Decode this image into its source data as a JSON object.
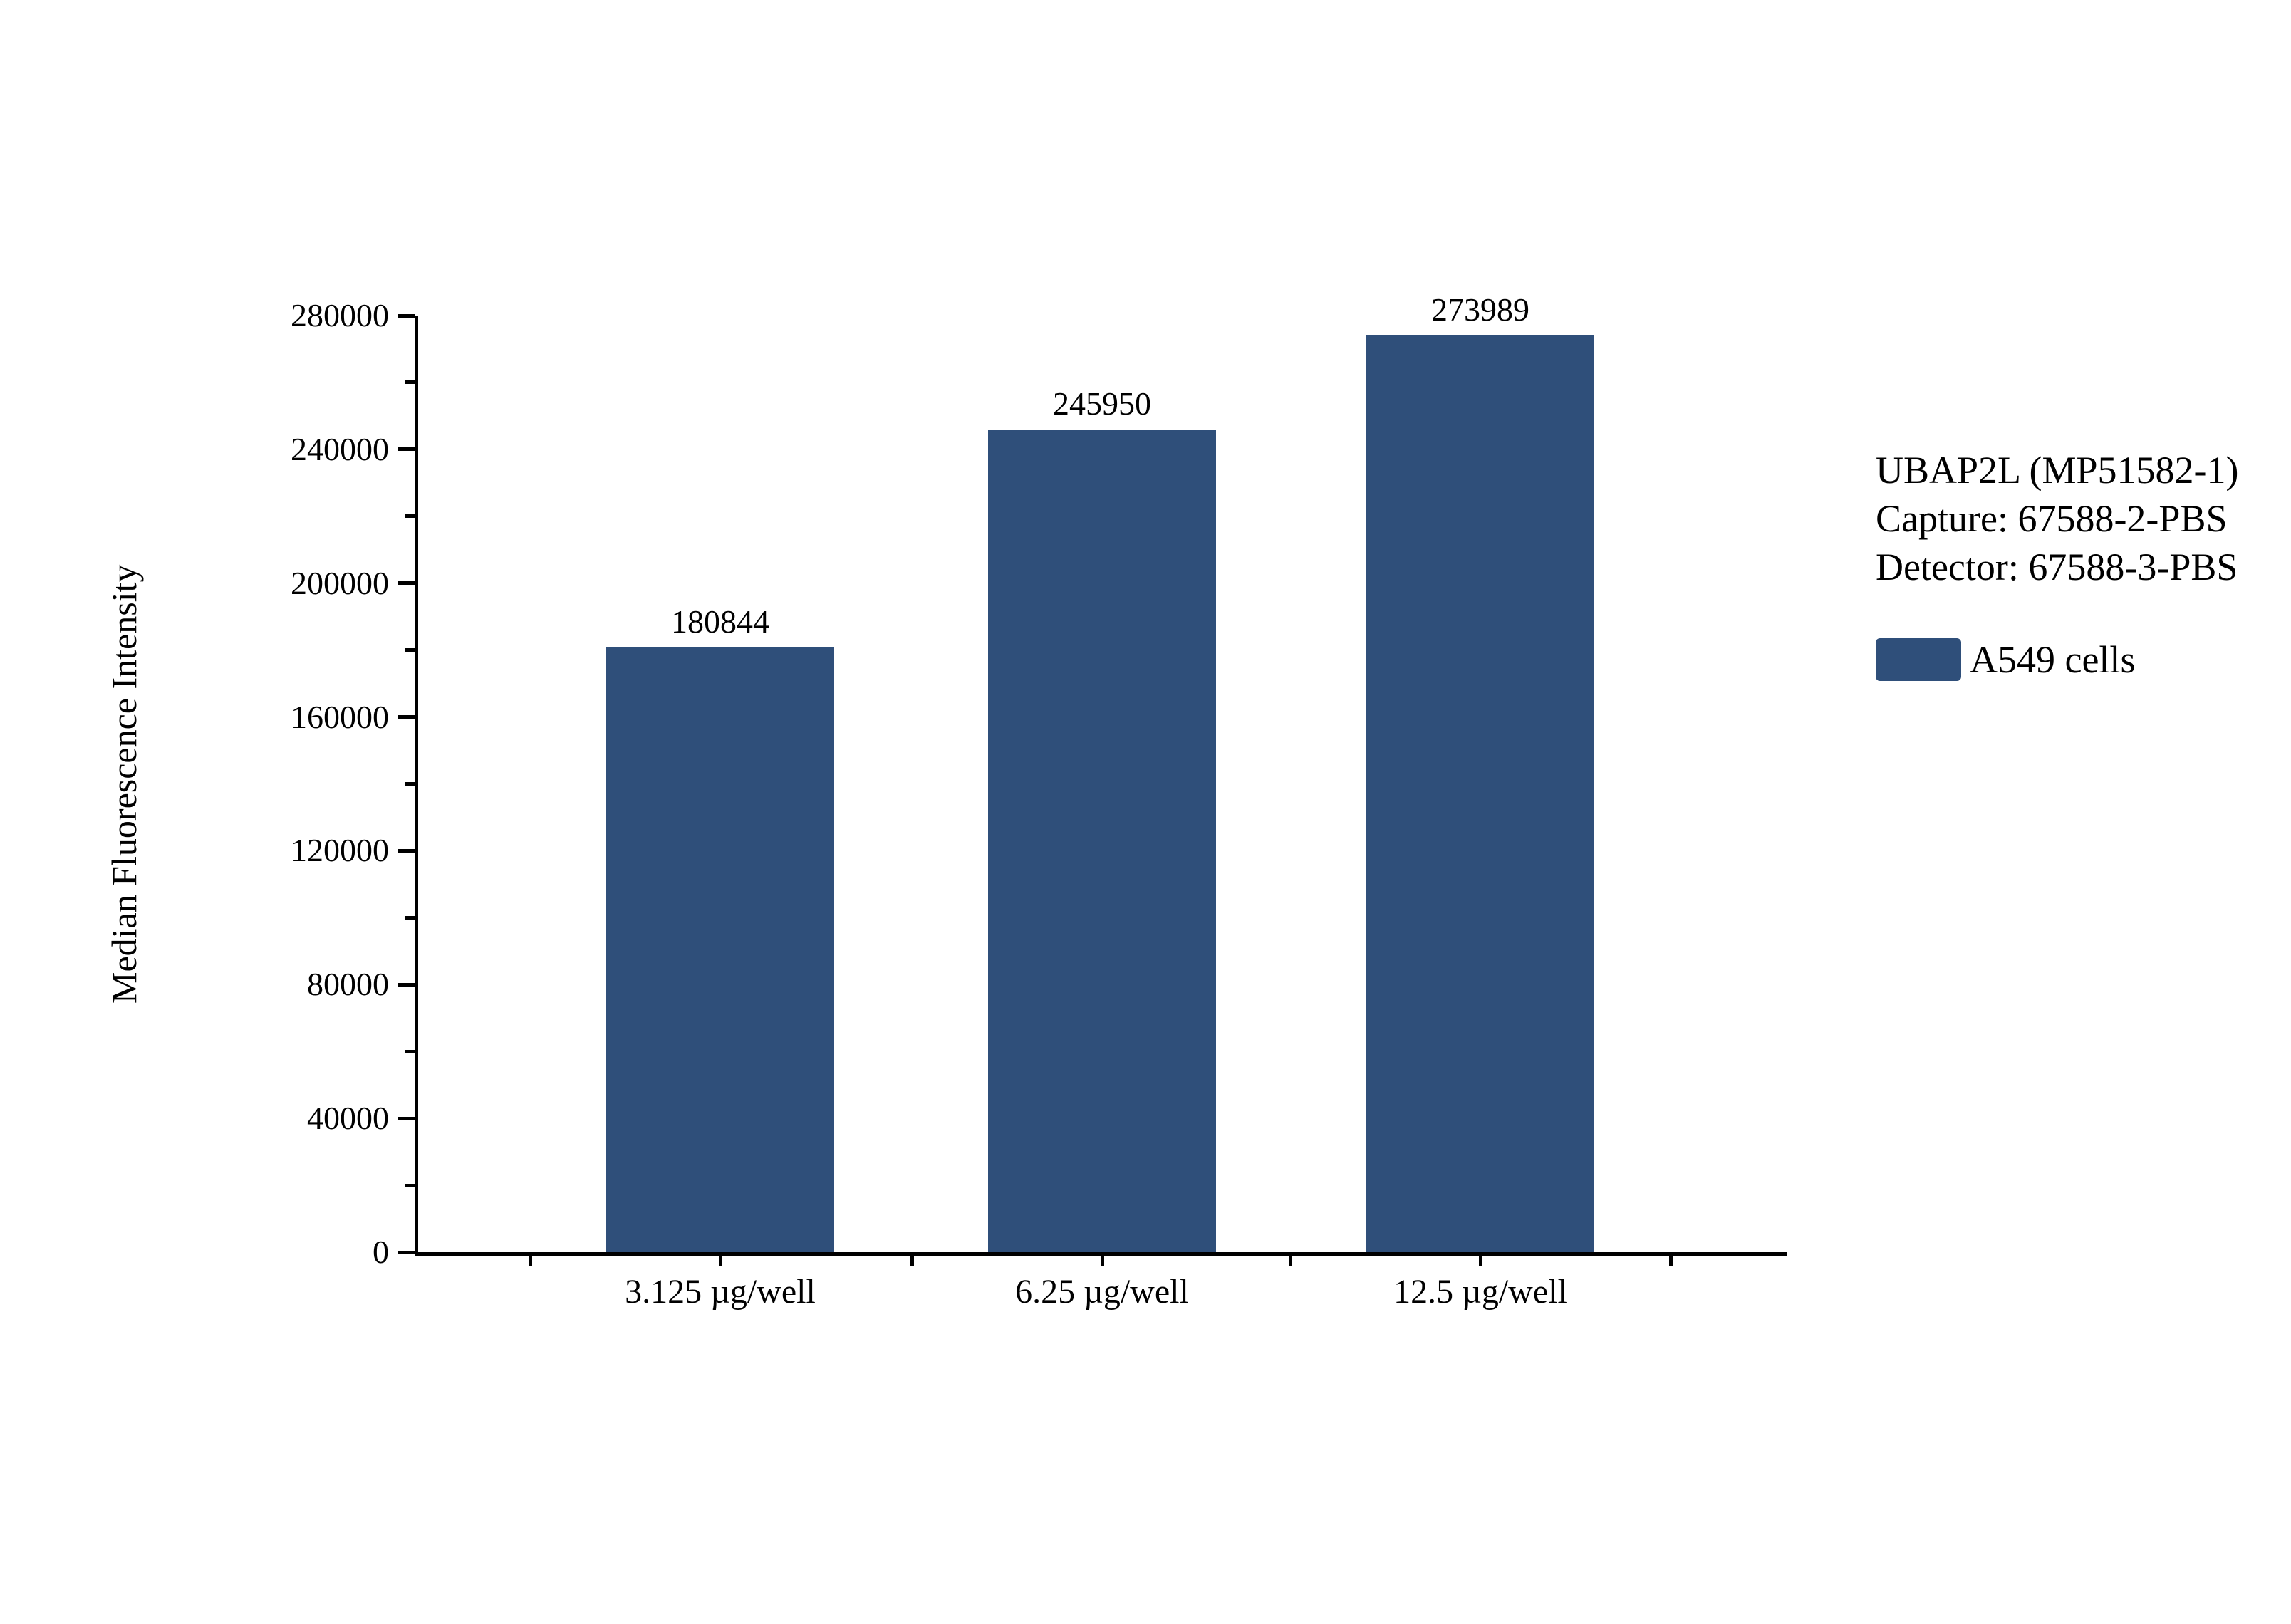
{
  "chart_data": {
    "type": "bar",
    "title": "",
    "categories": [
      "3.125 µg/well",
      "6.25 µg/well",
      "12.5 µg/well"
    ],
    "values": [
      180844,
      245950,
      273989
    ],
    "value_labels": [
      "180844",
      "245950",
      "273989"
    ],
    "xlabel": "",
    "ylabel": "Median Fluorescence Intensity",
    "ylim": [
      0,
      280000
    ],
    "ytick_interval": 40000,
    "yminortick_interval": 20000,
    "ytick_labels": [
      "0",
      "40000",
      "80000",
      "120000",
      "160000",
      "200000",
      "240000",
      "280000"
    ],
    "grid": false,
    "legend_position": "right",
    "colors": {
      "bar": "#2F4F7A",
      "axis": "#000000",
      "text": "#000000",
      "background": "#FFFFFF"
    },
    "annotation_lines": [
      "UBAP2L (MP51582-1)",
      "Capture: 67588-2-PBS",
      "Detector: 67588-3-PBS"
    ],
    "legend": {
      "entries": [
        {
          "label": "A549 cells",
          "color": "#2F4F7A"
        }
      ]
    }
  }
}
